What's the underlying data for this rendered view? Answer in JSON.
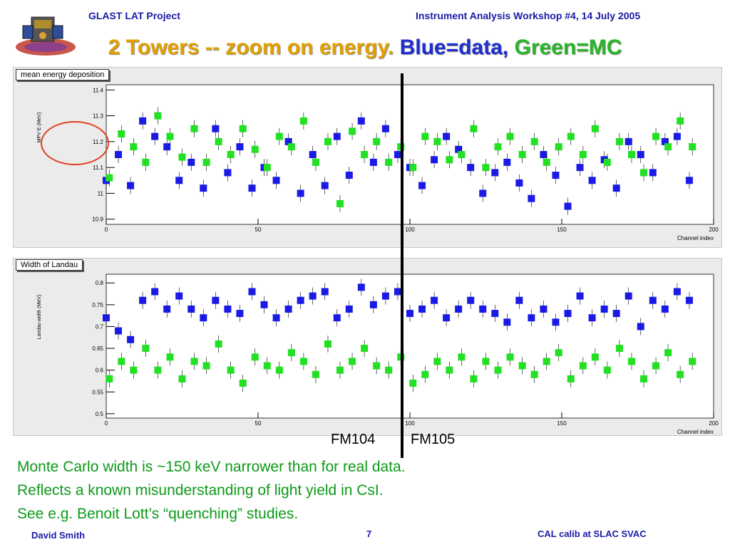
{
  "header": {
    "project": "GLAST LAT Project",
    "workshop": "Instrument Analysis Workshop #4, 14 July 2005"
  },
  "title": {
    "part1": "2 Towers -- zoom on energy.",
    "part2": "Blue=data,",
    "part3": "Green=MC",
    "colors": {
      "part1": "#e2a000",
      "part2": "#1f2fd0",
      "part3": "#2bb52b"
    }
  },
  "chart_data": [
    {
      "type": "scatter",
      "label": "mean energy deposition",
      "ylabel": "MPV E (MeV)",
      "xlabel": "Channel index",
      "xlim": [
        0,
        200
      ],
      "ylim": [
        10.88,
        11.42
      ],
      "xticks": [
        0,
        50,
        100,
        150,
        200
      ],
      "yticks": [
        "10.9",
        "11",
        "11.1",
        "11.2",
        "11.3",
        "11.4"
      ],
      "yticks_values": [
        10.9,
        11.0,
        11.1,
        11.2,
        11.3,
        11.4
      ],
      "grid": false,
      "series": [
        {
          "name": "Blue=data",
          "color": "#1a1ae6",
          "x": [
            0,
            4,
            8,
            12,
            16,
            20,
            24,
            28,
            32,
            36,
            40,
            44,
            48,
            52,
            56,
            60,
            64,
            68,
            72,
            76,
            80,
            84,
            88,
            92,
            96,
            100,
            104,
            108,
            112,
            116,
            120,
            124,
            128,
            132,
            136,
            140,
            144,
            148,
            152,
            156,
            160,
            164,
            168,
            172,
            176,
            180,
            184,
            188,
            192
          ],
          "y": [
            11.05,
            11.15,
            11.03,
            11.28,
            11.22,
            11.18,
            11.05,
            11.12,
            11.02,
            11.25,
            11.08,
            11.18,
            11.02,
            11.1,
            11.05,
            11.2,
            11.0,
            11.15,
            11.03,
            11.22,
            11.07,
            11.28,
            11.12,
            11.25,
            11.15,
            11.1,
            11.03,
            11.13,
            11.22,
            11.17,
            11.1,
            11.0,
            11.08,
            11.12,
            11.04,
            10.98,
            11.15,
            11.07,
            10.95,
            11.1,
            11.05,
            11.13,
            11.02,
            11.2,
            11.15,
            11.08,
            11.2,
            11.22,
            11.05
          ]
        },
        {
          "name": "Green=MC",
          "color": "#22e022",
          "x": [
            1,
            5,
            9,
            13,
            17,
            21,
            25,
            29,
            33,
            37,
            41,
            45,
            49,
            53,
            57,
            61,
            65,
            69,
            73,
            77,
            81,
            85,
            89,
            93,
            97,
            101,
            105,
            109,
            113,
            117,
            121,
            125,
            129,
            133,
            137,
            141,
            145,
            149,
            153,
            157,
            161,
            165,
            169,
            173,
            177,
            181,
            185,
            189,
            193
          ],
          "y": [
            11.06,
            11.23,
            11.18,
            11.12,
            11.3,
            11.22,
            11.14,
            11.25,
            11.12,
            11.2,
            11.15,
            11.25,
            11.17,
            11.1,
            11.22,
            11.18,
            11.28,
            11.12,
            11.2,
            10.96,
            11.24,
            11.15,
            11.2,
            11.12,
            11.18,
            11.1,
            11.22,
            11.2,
            11.13,
            11.15,
            11.25,
            11.1,
            11.18,
            11.22,
            11.15,
            11.2,
            11.12,
            11.18,
            11.22,
            11.15,
            11.25,
            11.12,
            11.2,
            11.15,
            11.08,
            11.22,
            11.18,
            11.28,
            11.18
          ]
        }
      ]
    },
    {
      "type": "scatter",
      "label": "Width of Landau",
      "ylabel": "Landau width (MeV)",
      "xlabel": "Channel index",
      "xlim": [
        0,
        200
      ],
      "ylim": [
        0.49,
        0.82
      ],
      "xticks": [
        0,
        50,
        100,
        150,
        200
      ],
      "yticks": [
        "0.5",
        "0.55",
        "0.6",
        "0.65",
        "0.7",
        "0.75",
        "0.8"
      ],
      "yticks_values": [
        0.5,
        0.55,
        0.6,
        0.65,
        0.7,
        0.75,
        0.8
      ],
      "grid": false,
      "series": [
        {
          "name": "Blue=data",
          "color": "#1a1ae6",
          "x": [
            0,
            4,
            8,
            12,
            16,
            20,
            24,
            28,
            32,
            36,
            40,
            44,
            48,
            52,
            56,
            60,
            64,
            68,
            72,
            76,
            80,
            84,
            88,
            92,
            96,
            100,
            104,
            108,
            112,
            116,
            120,
            124,
            128,
            132,
            136,
            140,
            144,
            148,
            152,
            156,
            160,
            164,
            168,
            172,
            176,
            180,
            184,
            188,
            192
          ],
          "y": [
            0.72,
            0.69,
            0.67,
            0.76,
            0.78,
            0.74,
            0.77,
            0.74,
            0.72,
            0.76,
            0.74,
            0.73,
            0.78,
            0.75,
            0.72,
            0.74,
            0.76,
            0.77,
            0.78,
            0.72,
            0.74,
            0.79,
            0.75,
            0.77,
            0.78,
            0.73,
            0.74,
            0.76,
            0.72,
            0.74,
            0.76,
            0.74,
            0.73,
            0.71,
            0.76,
            0.72,
            0.74,
            0.71,
            0.73,
            0.77,
            0.72,
            0.74,
            0.73,
            0.77,
            0.7,
            0.76,
            0.74,
            0.78,
            0.76
          ]
        },
        {
          "name": "Green=MC",
          "color": "#22e022",
          "x": [
            1,
            5,
            9,
            13,
            17,
            21,
            25,
            29,
            33,
            37,
            41,
            45,
            49,
            53,
            57,
            61,
            65,
            69,
            73,
            77,
            81,
            85,
            89,
            93,
            97,
            101,
            105,
            109,
            113,
            117,
            121,
            125,
            129,
            133,
            137,
            141,
            145,
            149,
            153,
            157,
            161,
            165,
            169,
            173,
            177,
            181,
            185,
            189,
            193
          ],
          "y": [
            0.58,
            0.62,
            0.6,
            0.65,
            0.6,
            0.63,
            0.58,
            0.62,
            0.61,
            0.66,
            0.6,
            0.57,
            0.63,
            0.61,
            0.6,
            0.64,
            0.62,
            0.59,
            0.66,
            0.6,
            0.62,
            0.65,
            0.61,
            0.6,
            0.63,
            0.57,
            0.59,
            0.62,
            0.6,
            0.63,
            0.58,
            0.62,
            0.6,
            0.63,
            0.61,
            0.59,
            0.62,
            0.64,
            0.58,
            0.61,
            0.63,
            0.6,
            0.65,
            0.62,
            0.58,
            0.61,
            0.64,
            0.59,
            0.62
          ]
        }
      ]
    }
  ],
  "divider_labels": {
    "left": "FM104",
    "right": "FM105"
  },
  "body": {
    "line1": "Monte Carlo width is ~150 keV narrower than for real data.",
    "line2": "Reflects a known misunderstanding of light yield in CsI.",
    "line3": "See e.g. Benoit Lott’s “quenching” studies."
  },
  "footer": {
    "author": "David Smith",
    "page": "7",
    "tag": "CAL calib at SLAC SVAC"
  }
}
